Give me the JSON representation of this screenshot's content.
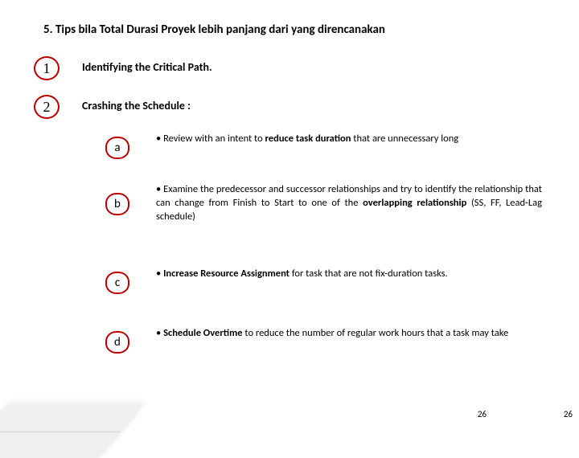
{
  "title": "5. Tips bila Total Durasi Proyek lebih panjang dari yang direncanakan",
  "main": [
    {
      "num": "1",
      "label": "Identifying the Critical Path."
    },
    {
      "num": "2",
      "label": "Crashing the Schedule :"
    }
  ],
  "sub": [
    {
      "letter": "a",
      "html": "<span class='bullet'></span>Review with an intent to <span class='bold'>reduce task duration</span> that are unnecessary long"
    },
    {
      "letter": "b",
      "html": "<span class='bullet'></span>Examine the predecessor and successor relationships and try to identify the relationship that can change from Finish to Start to one of the <span class='bold'>overlapping relationship</span> (SS, FF, Lead-Lag schedule)"
    },
    {
      "letter": "c",
      "html": "<span class='bullet'></span><span class='bold'>Increase Resource Assignment</span> for task that are not fix-duration tasks."
    },
    {
      "letter": "d",
      "html": "<span class='bullet'></span><span class='bold'>Schedule Overtime</span> to reduce the number of regular work hours that a task may take"
    }
  ],
  "page": "26",
  "colors": {
    "badge_border": "#c00000",
    "text": "#000000",
    "background": "#ffffff"
  }
}
